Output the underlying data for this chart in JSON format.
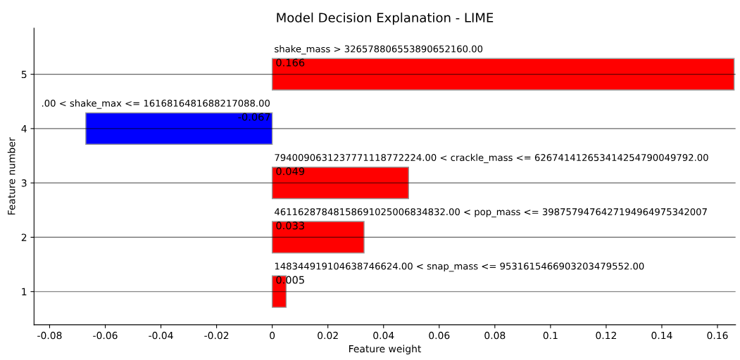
{
  "chart_data": {
    "type": "bar",
    "orientation": "horizontal",
    "title": "Model Decision Explanation - LIME",
    "xlabel": "Feature weight",
    "ylabel": "Feature number",
    "categories": [
      "5",
      "4",
      "3",
      "2",
      "1"
    ],
    "values": [
      0.166,
      -0.067,
      0.049,
      0.033,
      0.005
    ],
    "colors": [
      "#ff0000",
      "#0000ff",
      "#ff0000",
      "#ff0000",
      "#ff0000"
    ],
    "data_labels": true,
    "xlim": [
      -0.0856,
      0.1665
    ],
    "xticks": [
      -0.08,
      -0.06,
      -0.04,
      -0.02,
      0,
      0.02,
      0.04,
      0.06,
      0.08,
      {
        "value": 0.1,
        "label": "0.1"
      },
      0.12,
      0.14,
      0.16
    ],
    "grid": "y",
    "annotations": [
      "shake_mass > 326578806553890652160.00",
      ".00 < shake_max <= 1616816481688217088.00",
      "7940090631237771118772224.00 < crackle_mass <= 626741412653414254790049792.00",
      "46116287848158691025006834832.00 < pop_mass <= 3987579476427194964975342007",
      "148344919104638746624.00 < snap_mass <= 9531615466903203479552.00"
    ]
  }
}
